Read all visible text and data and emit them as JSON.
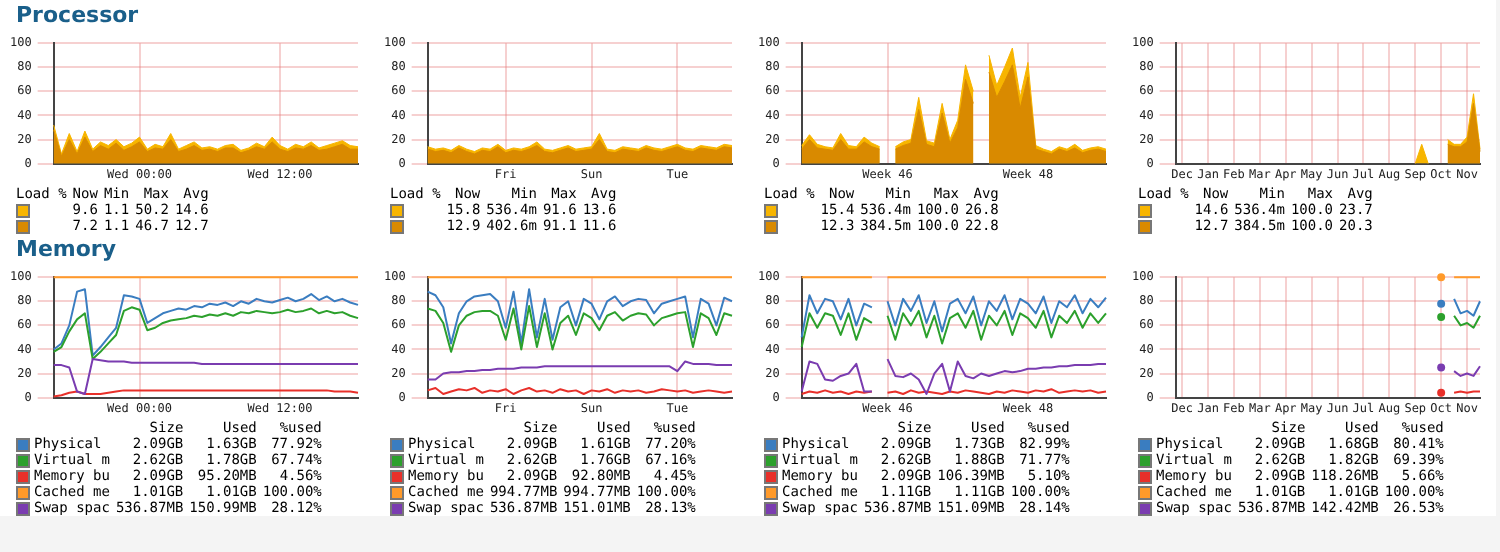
{
  "chart_data": [
    {
      "type": "area",
      "title": "Processor",
      "categories": [
        null,
        null,
        null,
        null,
        null,
        null,
        null,
        null,
        null,
        null,
        null,
        "Wed 00:00",
        null,
        null,
        null,
        null,
        null,
        null,
        null,
        null,
        null,
        null,
        null,
        null,
        null,
        null,
        null,
        null,
        null,
        "Wed 12:00",
        null,
        null,
        null,
        null,
        null,
        null,
        null,
        null,
        null,
        null
      ],
      "ylim": [
        0,
        100
      ],
      "yticks": [
        0,
        20,
        40,
        60,
        80,
        100
      ],
      "grid": true,
      "series": [
        {
          "color": "#f7b500",
          "values": [
            32,
            8,
            25,
            10,
            27,
            12,
            18,
            15,
            20,
            14,
            17,
            22,
            12,
            16,
            14,
            25,
            12,
            15,
            18,
            13,
            14,
            12,
            15,
            16,
            11,
            13,
            17,
            14,
            22,
            15,
            12,
            16,
            14,
            18,
            13,
            15,
            17,
            19,
            15,
            14
          ]
        },
        {
          "color": "#d98a00",
          "values": [
            28,
            6,
            20,
            8,
            22,
            10,
            15,
            12,
            17,
            11,
            14,
            18,
            10,
            13,
            12,
            20,
            10,
            12,
            15,
            11,
            12,
            10,
            13,
            13,
            9,
            11,
            14,
            12,
            18,
            12,
            10,
            13,
            12,
            15,
            11,
            12,
            14,
            16,
            12,
            12
          ]
        }
      ],
      "annotations": [
        "Load %",
        "Now",
        "Min",
        "Max",
        "Avg",
        "9.6",
        "1.1",
        "50.2",
        "14.6",
        "7.2",
        "1.1",
        "46.7",
        "12.7"
      ]
    },
    {
      "type": "area",
      "categories": [
        null,
        null,
        null,
        null,
        null,
        null,
        null,
        null,
        null,
        null,
        "Fri",
        null,
        null,
        null,
        null,
        null,
        null,
        null,
        null,
        null,
        null,
        "Sun",
        null,
        null,
        null,
        null,
        null,
        null,
        null,
        null,
        null,
        null,
        "Tue",
        null,
        null,
        null,
        null,
        null,
        null,
        null
      ],
      "ylim": [
        0,
        100
      ],
      "yticks": [
        0,
        20,
        40,
        60,
        80,
        100
      ],
      "grid": true,
      "series": [
        {
          "color": "#f7b500",
          "values": [
            14,
            12,
            13,
            11,
            15,
            12,
            10,
            13,
            12,
            16,
            11,
            13,
            12,
            14,
            18,
            12,
            11,
            13,
            15,
            12,
            13,
            14,
            25,
            12,
            11,
            14,
            13,
            12,
            15,
            13,
            12,
            14,
            16,
            13,
            12,
            15,
            14,
            13,
            16,
            15
          ]
        },
        {
          "color": "#d98a00",
          "values": [
            12,
            10,
            11,
            9,
            13,
            10,
            8,
            11,
            10,
            14,
            9,
            11,
            10,
            12,
            15,
            10,
            9,
            11,
            13,
            10,
            11,
            12,
            20,
            10,
            9,
            12,
            11,
            10,
            13,
            11,
            10,
            12,
            14,
            11,
            10,
            13,
            12,
            11,
            14,
            13
          ]
        }
      ],
      "annotations": [
        "Load %",
        "Now",
        "Min",
        "Max",
        "Avg",
        "15.8",
        "536.4m",
        "91.6",
        "13.6",
        "12.9",
        "402.6m",
        "91.1",
        "11.6"
      ]
    },
    {
      "type": "area",
      "categories": [
        null,
        null,
        null,
        null,
        null,
        null,
        null,
        null,
        null,
        null,
        null,
        "Week 46",
        null,
        null,
        null,
        null,
        null,
        null,
        null,
        null,
        null,
        null,
        null,
        null,
        null,
        null,
        null,
        null,
        null,
        "Week 48",
        null,
        null,
        null,
        null,
        null,
        null,
        null,
        null,
        null,
        null
      ],
      "ylim": [
        0,
        100
      ],
      "yticks": [
        0,
        20,
        40,
        60,
        80,
        100
      ],
      "grid": true,
      "series": [
        {
          "color": "#f7b500",
          "values": [
            15,
            24,
            16,
            14,
            13,
            25,
            15,
            14,
            22,
            17,
            14,
            null,
            14,
            18,
            20,
            55,
            19,
            17,
            50,
            20,
            36,
            82,
            60,
            null,
            90,
            65,
            80,
            96,
            55,
            84,
            15,
            12,
            10,
            14,
            12,
            16,
            11,
            13,
            14,
            12
          ]
        },
        {
          "color": "#d98a00",
          "values": [
            12,
            20,
            13,
            12,
            11,
            20,
            12,
            12,
            18,
            14,
            12,
            null,
            12,
            15,
            17,
            45,
            16,
            14,
            42,
            17,
            30,
            70,
            50,
            null,
            76,
            55,
            68,
            82,
            46,
            72,
            12,
            10,
            8,
            12,
            10,
            13,
            9,
            11,
            12,
            10
          ]
        }
      ],
      "annotations": [
        "Load %",
        "Now",
        "Min",
        "Max",
        "Avg",
        "15.4",
        "536.4m",
        "100.0",
        "26.8",
        "12.3",
        "384.5m",
        "100.0",
        "22.8"
      ]
    },
    {
      "type": "area",
      "categories": [
        null,
        "Dec",
        null,
        null,
        null,
        "Jan",
        null,
        null,
        null,
        "Feb",
        null,
        null,
        null,
        "Mar",
        null,
        null,
        null,
        "Apr",
        null,
        null,
        null,
        "May",
        null,
        null,
        null,
        "Jun",
        null,
        null,
        null,
        "Jul",
        null,
        null,
        null,
        "Aug",
        null,
        null,
        null,
        "Sep",
        null,
        null,
        null,
        "Oct",
        null,
        null,
        null,
        "Nov",
        null,
        null
      ],
      "ylim": [
        0,
        100
      ],
      "yticks": [
        0,
        20,
        40,
        60,
        80,
        100
      ],
      "grid": true,
      "series": [
        {
          "color": "#f7b500",
          "values": [
            null,
            null,
            null,
            null,
            null,
            null,
            null,
            null,
            null,
            null,
            null,
            null,
            null,
            null,
            null,
            null,
            null,
            null,
            null,
            null,
            null,
            null,
            null,
            null,
            null,
            null,
            null,
            null,
            null,
            null,
            null,
            null,
            null,
            null,
            null,
            null,
            null,
            0,
            16,
            0,
            null,
            null,
            20,
            16,
            16,
            22,
            58,
            12
          ]
        },
        {
          "color": "#d98a00",
          "values": [
            null,
            null,
            null,
            null,
            null,
            null,
            null,
            null,
            null,
            null,
            null,
            null,
            null,
            null,
            null,
            null,
            null,
            null,
            null,
            null,
            null,
            null,
            null,
            null,
            null,
            null,
            null,
            null,
            null,
            null,
            null,
            null,
            null,
            null,
            null,
            null,
            null,
            null,
            null,
            null,
            null,
            null,
            16,
            14,
            14,
            18,
            50,
            10
          ]
        }
      ],
      "annotations": [
        "Load %",
        "Now",
        "Min",
        "Max",
        "Avg",
        "14.6",
        "536.4m",
        "100.0",
        "23.7",
        "12.7",
        "384.5m",
        "100.0",
        "20.3"
      ]
    },
    {
      "type": "line",
      "title": "Memory",
      "categories": [
        null,
        null,
        null,
        null,
        null,
        null,
        null,
        null,
        null,
        null,
        null,
        "Wed 00:00",
        null,
        null,
        null,
        null,
        null,
        null,
        null,
        null,
        null,
        null,
        null,
        null,
        null,
        null,
        null,
        null,
        null,
        "Wed 12:00",
        null,
        null,
        null,
        null,
        null,
        null,
        null,
        null,
        null,
        null
      ],
      "ylim": [
        0,
        100
      ],
      "yticks": [
        0,
        20,
        40,
        60,
        80,
        100
      ],
      "grid": true,
      "legend": "bottom",
      "series": [
        {
          "name": "Physical",
          "color": "#3a7dc0",
          "values": [
            40,
            45,
            60,
            88,
            90,
            35,
            42,
            50,
            58,
            85,
            84,
            82,
            62,
            66,
            70,
            72,
            74,
            73,
            76,
            75,
            78,
            77,
            79,
            76,
            80,
            78,
            82,
            80,
            79,
            81,
            83,
            80,
            82,
            86,
            81,
            84,
            80,
            82,
            79,
            77
          ]
        },
        {
          "name": "Virtual m",
          "color": "#2ca02c",
          "values": [
            38,
            42,
            55,
            65,
            70,
            32,
            38,
            45,
            52,
            72,
            75,
            73,
            56,
            58,
            62,
            64,
            65,
            66,
            68,
            67,
            69,
            68,
            70,
            68,
            71,
            70,
            72,
            71,
            70,
            71,
            73,
            71,
            72,
            74,
            70,
            72,
            70,
            71,
            68,
            66
          ]
        },
        {
          "name": "Memory bu",
          "color": "#e8302a",
          "values": [
            1,
            2,
            4,
            5,
            3,
            3,
            3,
            4,
            5,
            6,
            6,
            6,
            6,
            6,
            6,
            6,
            6,
            6,
            6,
            6,
            6,
            6,
            6,
            6,
            6,
            6,
            6,
            6,
            6,
            6,
            6,
            6,
            6,
            6,
            6,
            6,
            5,
            5,
            5,
            4
          ]
        },
        {
          "name": "Cached me",
          "color": "#ff9a2a",
          "values": [
            100,
            100,
            100,
            100,
            100,
            100,
            100,
            100,
            100,
            100,
            100,
            100,
            100,
            100,
            100,
            100,
            100,
            100,
            100,
            100,
            100,
            100,
            100,
            100,
            100,
            100,
            100,
            100,
            100,
            100,
            100,
            100,
            100,
            100,
            100,
            100,
            100,
            100,
            100,
            100
          ]
        },
        {
          "name": "Swap spac",
          "color": "#7a3cb0",
          "values": [
            27,
            27,
            25,
            5,
            3,
            32,
            31,
            30,
            30,
            30,
            29,
            29,
            29,
            29,
            29,
            29,
            29,
            29,
            29,
            28,
            28,
            28,
            28,
            28,
            28,
            28,
            28,
            28,
            28,
            28,
            28,
            28,
            28,
            28,
            28,
            28,
            28,
            28,
            28,
            28
          ]
        }
      ],
      "annotations": [
        "Size",
        "Used",
        "%used",
        "2.09GB",
        "1.63GB",
        "77.92%",
        "2.62GB",
        "1.78GB",
        "67.74%",
        "2.09GB",
        "95.20MB",
        "4.56%",
        "1.01GB",
        "1.01GB",
        "100.00%",
        "536.87MB",
        "150.99MB",
        "28.12%"
      ]
    },
    {
      "type": "line",
      "categories": [
        null,
        null,
        null,
        null,
        null,
        null,
        null,
        null,
        null,
        null,
        "Fri",
        null,
        null,
        null,
        null,
        null,
        null,
        null,
        null,
        null,
        null,
        "Sun",
        null,
        null,
        null,
        null,
        null,
        null,
        null,
        null,
        null,
        null,
        "Tue",
        null,
        null,
        null,
        null,
        null,
        null,
        null
      ],
      "ylim": [
        0,
        100
      ],
      "yticks": [
        0,
        20,
        40,
        60,
        80,
        100
      ],
      "grid": true,
      "legend": "bottom",
      "series": [
        {
          "name": "Physical",
          "color": "#3a7dc0",
          "values": [
            88,
            85,
            75,
            45,
            70,
            80,
            84,
            85,
            86,
            80,
            58,
            88,
            45,
            90,
            50,
            82,
            48,
            75,
            80,
            60,
            82,
            78,
            65,
            80,
            84,
            76,
            80,
            82,
            81,
            70,
            78,
            80,
            82,
            84,
            50,
            82,
            78,
            60,
            83,
            80
          ]
        },
        {
          "name": "Virtual m",
          "color": "#2ca02c",
          "values": [
            74,
            72,
            62,
            38,
            60,
            68,
            71,
            72,
            72,
            68,
            48,
            74,
            40,
            76,
            42,
            70,
            40,
            62,
            68,
            52,
            70,
            66,
            56,
            68,
            71,
            64,
            68,
            70,
            69,
            60,
            66,
            68,
            70,
            71,
            42,
            70,
            66,
            52,
            70,
            68
          ]
        },
        {
          "name": "Memory bu",
          "color": "#e8302a",
          "values": [
            6,
            8,
            3,
            5,
            7,
            6,
            8,
            4,
            6,
            5,
            7,
            3,
            6,
            8,
            5,
            6,
            4,
            7,
            5,
            6,
            3,
            6,
            5,
            7,
            4,
            6,
            5,
            6,
            4,
            5,
            7,
            6,
            5,
            6,
            4,
            5,
            6,
            5,
            4,
            5
          ]
        },
        {
          "name": "Cached me",
          "color": "#ff9a2a",
          "values": [
            100,
            100,
            100,
            100,
            100,
            100,
            100,
            100,
            100,
            100,
            100,
            100,
            100,
            100,
            100,
            100,
            100,
            100,
            100,
            100,
            100,
            100,
            100,
            100,
            100,
            100,
            100,
            100,
            100,
            100,
            100,
            100,
            100,
            100,
            100,
            100,
            100,
            100,
            100,
            100
          ]
        },
        {
          "name": "Swap spac",
          "color": "#7a3cb0",
          "values": [
            15,
            15,
            20,
            21,
            21,
            22,
            22,
            23,
            23,
            24,
            24,
            24,
            25,
            25,
            25,
            26,
            26,
            26,
            26,
            26,
            26,
            26,
            26,
            26,
            26,
            26,
            26,
            26,
            26,
            26,
            26,
            26,
            22,
            30,
            28,
            28,
            28,
            27,
            27,
            27
          ]
        }
      ],
      "annotations": [
        "Size",
        "Used",
        "%used",
        "2.09GB",
        "1.61GB",
        "77.20%",
        "2.62GB",
        "1.76GB",
        "67.16%",
        "2.09GB",
        "92.80MB",
        "4.45%",
        "994.77MB",
        "994.77MB",
        "100.00%",
        "536.87MB",
        "151.01MB",
        "28.13%"
      ]
    },
    {
      "type": "line",
      "categories": [
        null,
        null,
        null,
        null,
        null,
        null,
        null,
        null,
        null,
        null,
        null,
        "Week 46",
        null,
        null,
        null,
        null,
        null,
        null,
        null,
        null,
        null,
        null,
        null,
        null,
        null,
        null,
        null,
        null,
        null,
        "Week 48",
        null,
        null,
        null,
        null,
        null,
        null,
        null,
        null,
        null,
        null
      ],
      "ylim": [
        0,
        100
      ],
      "yticks": [
        0,
        20,
        40,
        60,
        80,
        100
      ],
      "grid": true,
      "legend": "bottom",
      "series": [
        {
          "name": "Physical",
          "color": "#3a7dc0",
          "values": [
            50,
            85,
            70,
            82,
            80,
            65,
            82,
            60,
            78,
            75,
            null,
            80,
            60,
            82,
            72,
            85,
            62,
            80,
            55,
            78,
            82,
            70,
            84,
            60,
            80,
            72,
            85,
            65,
            82,
            78,
            70,
            84,
            62,
            80,
            75,
            85,
            70,
            82,
            75,
            83
          ]
        },
        {
          "name": "Virtual m",
          "color": "#2ca02c",
          "values": [
            42,
            70,
            58,
            70,
            68,
            52,
            70,
            48,
            66,
            62,
            null,
            68,
            48,
            70,
            60,
            72,
            50,
            68,
            45,
            66,
            70,
            58,
            72,
            48,
            68,
            60,
            72,
            52,
            70,
            66,
            58,
            72,
            50,
            68,
            62,
            72,
            58,
            70,
            62,
            70
          ]
        },
        {
          "name": "Memory bu",
          "color": "#e8302a",
          "values": [
            3,
            5,
            4,
            6,
            4,
            5,
            3,
            5,
            4,
            5,
            null,
            4,
            5,
            3,
            6,
            4,
            5,
            4,
            3,
            5,
            4,
            6,
            5,
            4,
            3,
            5,
            4,
            6,
            5,
            4,
            6,
            5,
            7,
            4,
            5,
            6,
            5,
            6,
            4,
            5
          ]
        },
        {
          "name": "Cached me",
          "color": "#ff9a2a",
          "values": [
            100,
            100,
            100,
            100,
            100,
            100,
            100,
            100,
            100,
            100,
            null,
            100,
            100,
            100,
            100,
            100,
            100,
            100,
            100,
            100,
            100,
            100,
            100,
            100,
            100,
            100,
            100,
            100,
            100,
            100,
            100,
            100,
            100,
            100,
            100,
            100,
            100,
            100,
            100,
            100
          ]
        },
        {
          "name": "Swap spac",
          "color": "#7a3cb0",
          "values": [
            5,
            30,
            28,
            15,
            14,
            18,
            20,
            28,
            5,
            5,
            null,
            32,
            18,
            17,
            20,
            15,
            3,
            20,
            28,
            5,
            30,
            18,
            16,
            20,
            18,
            20,
            22,
            21,
            22,
            24,
            24,
            25,
            25,
            26,
            26,
            27,
            27,
            27,
            28,
            28
          ]
        }
      ],
      "annotations": [
        "Size",
        "Used",
        "%used",
        "2.09GB",
        "1.73GB",
        "82.99%",
        "2.62GB",
        "1.88GB",
        "71.77%",
        "2.09GB",
        "106.39MB",
        "5.10%",
        "1.11GB",
        "1.11GB",
        "100.00%",
        "536.87MB",
        "151.09MB",
        "28.14%"
      ]
    },
    {
      "type": "line",
      "categories": [
        null,
        "Dec",
        null,
        null,
        null,
        "Jan",
        null,
        null,
        null,
        "Feb",
        null,
        null,
        null,
        "Mar",
        null,
        null,
        null,
        "Apr",
        null,
        null,
        null,
        "May",
        null,
        null,
        null,
        "Jun",
        null,
        null,
        null,
        "Jul",
        null,
        null,
        null,
        "Aug",
        null,
        null,
        null,
        "Sep",
        null,
        null,
        null,
        "Oct",
        null,
        null,
        null,
        "Nov",
        null,
        null
      ],
      "ylim": [
        0,
        100
      ],
      "yticks": [
        0,
        20,
        40,
        60,
        80,
        100
      ],
      "grid": true,
      "legend": "bottom",
      "series": [
        {
          "name": "Physical",
          "color": "#3a7dc0",
          "values": [
            null,
            null,
            null,
            null,
            null,
            null,
            null,
            null,
            null,
            null,
            null,
            null,
            null,
            null,
            null,
            null,
            null,
            null,
            null,
            null,
            null,
            null,
            null,
            null,
            null,
            null,
            null,
            null,
            null,
            null,
            null,
            null,
            null,
            null,
            null,
            null,
            null,
            null,
            null,
            null,
            null,
            78,
            null,
            82,
            70,
            72,
            68,
            80
          ]
        },
        {
          "name": "Virtual m",
          "color": "#2ca02c",
          "values": [
            null,
            null,
            null,
            null,
            null,
            null,
            null,
            null,
            null,
            null,
            null,
            null,
            null,
            null,
            null,
            null,
            null,
            null,
            null,
            null,
            null,
            null,
            null,
            null,
            null,
            null,
            null,
            null,
            null,
            null,
            null,
            null,
            null,
            null,
            null,
            null,
            null,
            null,
            null,
            null,
            null,
            67,
            null,
            68,
            60,
            62,
            58,
            68
          ]
        },
        {
          "name": "Memory bu",
          "color": "#e8302a",
          "values": [
            null,
            null,
            null,
            null,
            null,
            null,
            null,
            null,
            null,
            null,
            null,
            null,
            null,
            null,
            null,
            null,
            null,
            null,
            null,
            null,
            null,
            null,
            null,
            null,
            null,
            null,
            null,
            null,
            null,
            null,
            null,
            null,
            null,
            null,
            null,
            null,
            null,
            null,
            null,
            null,
            null,
            4,
            null,
            4,
            5,
            4,
            5,
            5
          ]
        },
        {
          "name": "Cached me",
          "color": "#ff9a2a",
          "values": [
            null,
            null,
            null,
            null,
            null,
            null,
            null,
            null,
            null,
            null,
            null,
            null,
            null,
            null,
            null,
            null,
            null,
            null,
            null,
            null,
            null,
            null,
            null,
            null,
            null,
            null,
            null,
            null,
            null,
            null,
            null,
            null,
            null,
            null,
            null,
            null,
            null,
            null,
            null,
            null,
            null,
            100,
            null,
            100,
            100,
            100,
            100,
            100
          ]
        },
        {
          "name": "Swap spac",
          "color": "#7a3cb0",
          "values": [
            null,
            null,
            null,
            null,
            null,
            null,
            null,
            null,
            null,
            null,
            null,
            null,
            null,
            null,
            null,
            null,
            null,
            null,
            null,
            null,
            null,
            null,
            null,
            null,
            null,
            null,
            null,
            null,
            null,
            null,
            null,
            null,
            null,
            null,
            null,
            null,
            null,
            null,
            null,
            null,
            null,
            25,
            null,
            22,
            18,
            20,
            18,
            26
          ]
        }
      ],
      "annotations": [
        "Size",
        "Used",
        "%used",
        "2.09GB",
        "1.68GB",
        "80.41%",
        "2.62GB",
        "1.82GB",
        "69.39%",
        "2.09GB",
        "118.26MB",
        "5.66%",
        "1.01GB",
        "1.01GB",
        "100.00%",
        "536.87MB",
        "142.42MB",
        "26.53%"
      ]
    }
  ]
}
